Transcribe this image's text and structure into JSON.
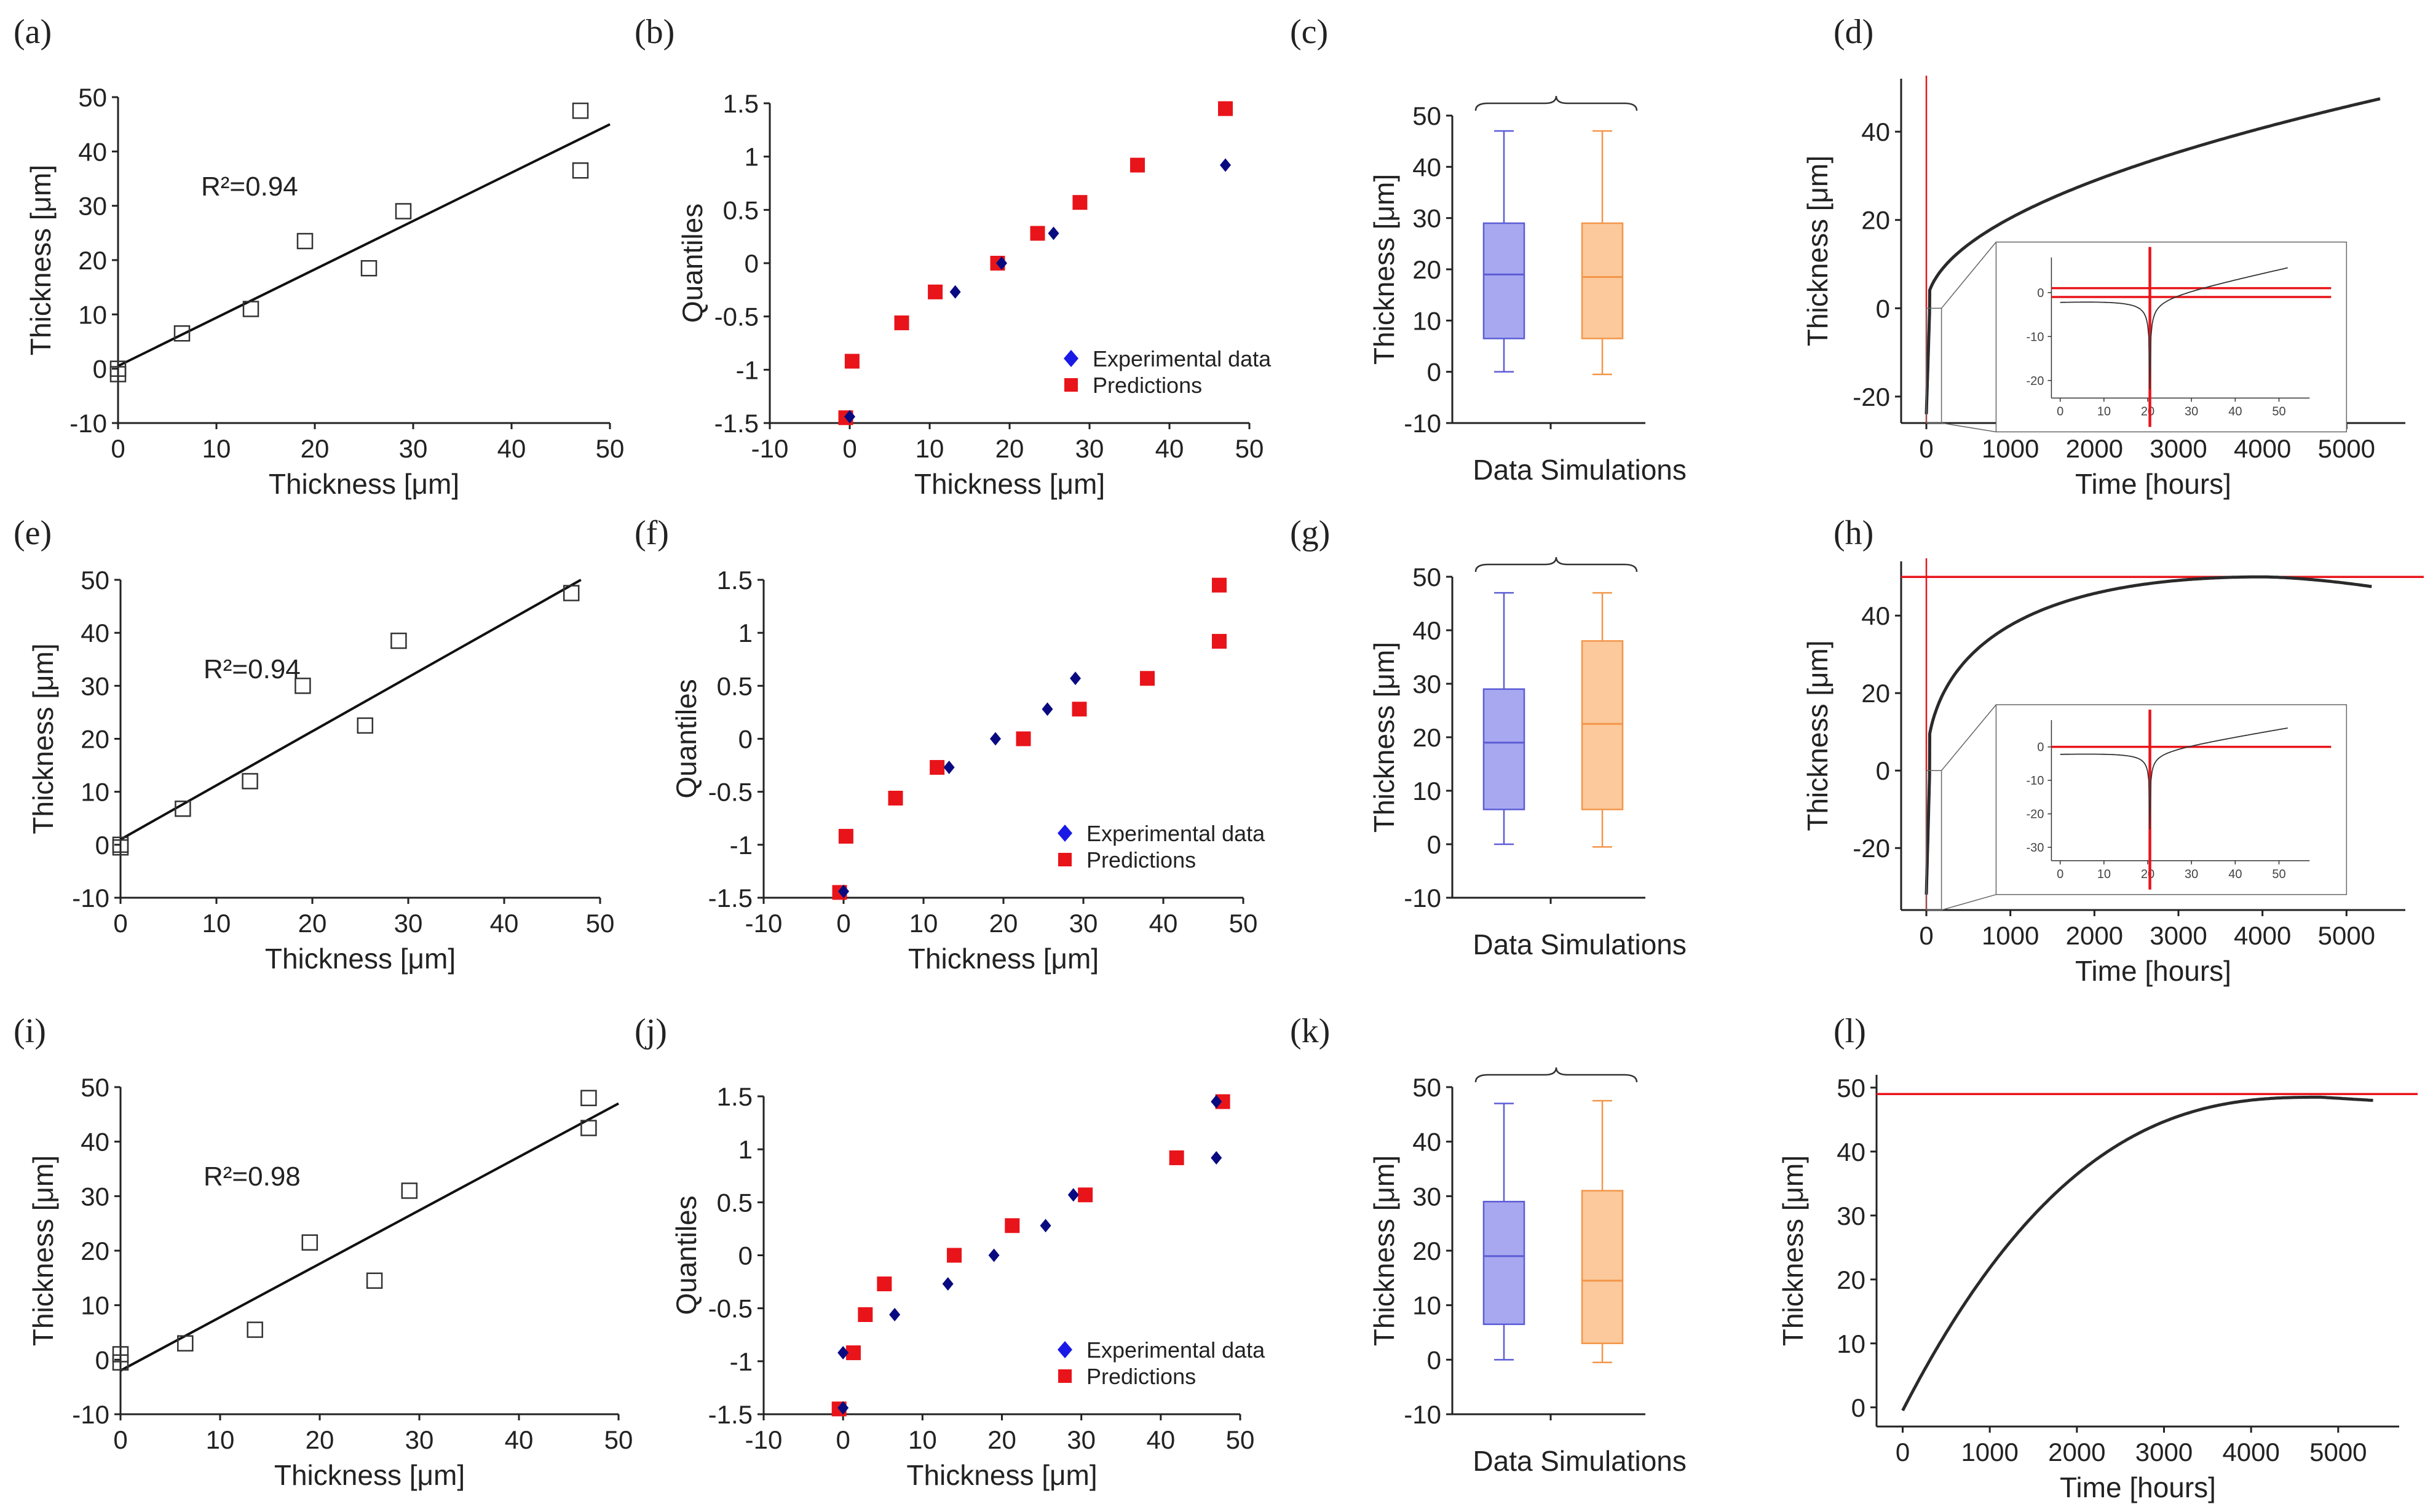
{
  "figure": {
    "description_rows": 3
  },
  "chart_data": [
    {
      "id": "a",
      "panel_label": "(a)",
      "type": "scatter",
      "xlabel": "Thickness [μm]",
      "ylabel": "Thickness [μm]",
      "xlim": [
        0,
        50
      ],
      "ylim": [
        -10,
        50
      ],
      "xticks": [
        0,
        10,
        20,
        30,
        40,
        50
      ],
      "yticks": [
        -10,
        0,
        10,
        20,
        30,
        40,
        50
      ],
      "annotation": "R²=0.94",
      "points": [
        [
          0,
          0
        ],
        [
          0,
          -1
        ],
        [
          6.5,
          6.5
        ],
        [
          13.5,
          11
        ],
        [
          19,
          23.5
        ],
        [
          25.5,
          18.5
        ],
        [
          29,
          29
        ],
        [
          47,
          47.5
        ],
        [
          47,
          36.5
        ]
      ],
      "fit_line": [
        [
          0,
          0.5
        ],
        [
          50,
          45
        ]
      ]
    },
    {
      "id": "b",
      "panel_label": "(b)",
      "type": "scatter",
      "xlabel": "Thickness [μm]",
      "ylabel": "Quantiles",
      "xlim": [
        -10,
        50
      ],
      "ylim": [
        -1.5,
        1.5
      ],
      "xticks": [
        -10,
        0,
        10,
        20,
        30,
        40,
        50
      ],
      "yticks": [
        -1.5,
        -1,
        -0.5,
        0,
        0.5,
        1,
        1.5
      ],
      "legend": [
        "Experimental data",
        "Predictions"
      ],
      "series": [
        {
          "name": "Experimental data",
          "points": [
            [
              0,
              -1.44
            ],
            [
              13.2,
              -0.27
            ],
            [
              19,
              0
            ],
            [
              25.5,
              0.28
            ],
            [
              47,
              0.92
            ]
          ]
        },
        {
          "name": "Predictions",
          "points": [
            [
              -0.5,
              -1.45
            ],
            [
              0.3,
              -0.92
            ],
            [
              6.5,
              -0.56
            ],
            [
              10.7,
              -0.27
            ],
            [
              18.5,
              0
            ],
            [
              23.5,
              0.28
            ],
            [
              28.8,
              0.57
            ],
            [
              36,
              0.92
            ],
            [
              47,
              1.45
            ]
          ]
        }
      ]
    },
    {
      "id": "c",
      "panel_label": "(c)",
      "type": "box",
      "ylabel": "Thickness [μm]",
      "ylim": [
        -10,
        50
      ],
      "yticks": [
        -10,
        0,
        10,
        20,
        30,
        40,
        50
      ],
      "categories": [
        "Data",
        "Simulations"
      ],
      "boxes": [
        {
          "name": "Data",
          "min": 0,
          "q1": 6.5,
          "median": 19,
          "q3": 29,
          "max": 47
        },
        {
          "name": "Simulations",
          "min": -0.5,
          "q1": 6.5,
          "median": 18.5,
          "q3": 29,
          "max": 47
        }
      ]
    },
    {
      "id": "d",
      "panel_label": "(d)",
      "type": "line",
      "xlabel": "Time [hours]",
      "ylabel": "Thickness [μm]",
      "xlim": [
        -300,
        5700
      ],
      "ylim": [
        -26,
        52
      ],
      "xticks": [
        0,
        1000,
        2000,
        3000,
        4000,
        5000
      ],
      "yticks": [
        -20,
        0,
        20,
        40
      ],
      "curve": {
        "t0": 0,
        "t1": 5400,
        "a": 0,
        "b": 0,
        "k": 0,
        "sqrt_coeff": 0.6458,
        "dip": -24
      },
      "horizontal_lines": [],
      "vertical_lines": [
        0
      ],
      "inset": {
        "xticks": [
          0,
          10,
          20,
          30,
          40,
          50
        ],
        "yticks": [
          0,
          -10,
          -20
        ],
        "xlim": [
          -2,
          57
        ],
        "ylim": [
          -24,
          8
        ],
        "horizontal_lines": [
          -1,
          1
        ],
        "vertical_line": 20.5
      }
    },
    {
      "id": "e",
      "panel_label": "(e)",
      "type": "scatter",
      "xlabel": "Thickness [μm]",
      "ylabel": "Thickness [μm]",
      "xlim": [
        0,
        50
      ],
      "ylim": [
        -10,
        50
      ],
      "xticks": [
        0,
        10,
        20,
        30,
        40,
        50
      ],
      "yticks": [
        -10,
        0,
        10,
        20,
        30,
        40,
        50
      ],
      "annotation": "R²=0.94",
      "points": [
        [
          0,
          0
        ],
        [
          0,
          -0.5
        ],
        [
          6.5,
          6.8
        ],
        [
          13.5,
          12
        ],
        [
          19,
          30
        ],
        [
          25.5,
          22.5
        ],
        [
          29,
          38.5
        ],
        [
          47,
          47.5
        ]
      ],
      "fit_line": [
        [
          0,
          1
        ],
        [
          48,
          50
        ]
      ]
    },
    {
      "id": "f",
      "panel_label": "(f)",
      "type": "scatter",
      "xlabel": "Thickness [μm]",
      "ylabel": "Quantiles",
      "xlim": [
        -10,
        50
      ],
      "ylim": [
        -1.5,
        1.5
      ],
      "xticks": [
        -10,
        0,
        10,
        20,
        30,
        40,
        50
      ],
      "yticks": [
        -1.5,
        -1,
        -0.5,
        0,
        0.5,
        1,
        1.5
      ],
      "legend": [
        "Experimental data",
        "Predictions"
      ],
      "series": [
        {
          "name": "Experimental data",
          "points": [
            [
              0,
              -1.44
            ],
            [
              13.2,
              -0.27
            ],
            [
              19,
              0
            ],
            [
              25.5,
              0.28
            ],
            [
              29,
              0.57
            ]
          ]
        },
        {
          "name": "Predictions",
          "points": [
            [
              -0.5,
              -1.45
            ],
            [
              0.3,
              -0.92
            ],
            [
              6.5,
              -0.56
            ],
            [
              11.7,
              -0.27
            ],
            [
              22.5,
              0
            ],
            [
              29.5,
              0.28
            ],
            [
              38,
              0.57
            ],
            [
              47,
              0.92
            ],
            [
              47,
              1.45
            ]
          ]
        }
      ]
    },
    {
      "id": "g",
      "panel_label": "(g)",
      "type": "box",
      "ylabel": "Thickness [μm]",
      "ylim": [
        -10,
        50
      ],
      "yticks": [
        -10,
        0,
        10,
        20,
        30,
        40,
        50
      ],
      "categories": [
        "Data",
        "Simulations"
      ],
      "boxes": [
        {
          "name": "Data",
          "min": 0,
          "q1": 6.5,
          "median": 19,
          "q3": 29,
          "max": 47
        },
        {
          "name": "Simulations",
          "min": -0.5,
          "q1": 6.5,
          "median": 22.5,
          "q3": 38,
          "max": 47
        }
      ]
    },
    {
      "id": "h",
      "panel_label": "(h)",
      "type": "line",
      "xlabel": "Time [hours]",
      "ylabel": "Thickness [μm]",
      "xlim": [
        -300,
        5700
      ],
      "ylim": [
        -36,
        54
      ],
      "xticks": [
        0,
        1000,
        2000,
        3000,
        4000,
        5000
      ],
      "yticks": [
        -20,
        0,
        20,
        40
      ],
      "curve": {
        "t0": 0,
        "t1": 5300,
        "a": 0,
        "b": 0,
        "k": 0,
        "peak_t": 4000,
        "peak_y": 50,
        "end_y": 47.5,
        "dip": -32
      },
      "horizontal_lines": [
        50
      ],
      "vertical_lines": [
        0
      ],
      "inset": {
        "xticks": [
          0,
          10,
          20,
          30,
          40,
          50
        ],
        "yticks": [
          0,
          -10,
          -20,
          -30
        ],
        "xlim": [
          -2,
          57
        ],
        "ylim": [
          -34,
          8
        ],
        "horizontal_lines": [
          0
        ],
        "vertical_line": 20.5
      }
    },
    {
      "id": "i",
      "panel_label": "(i)",
      "type": "scatter",
      "xlabel": "Thickness [μm]",
      "ylabel": "Thickness [μm]",
      "xlim": [
        0,
        50
      ],
      "ylim": [
        -10,
        50
      ],
      "xticks": [
        0,
        10,
        20,
        30,
        40,
        50
      ],
      "yticks": [
        -10,
        0,
        10,
        20,
        30,
        40,
        50
      ],
      "annotation": "R²=0.98",
      "points": [
        [
          0,
          1
        ],
        [
          0,
          -0.5
        ],
        [
          6.5,
          3
        ],
        [
          13.5,
          5.5
        ],
        [
          19,
          21.5
        ],
        [
          25.5,
          14.5
        ],
        [
          29,
          31
        ],
        [
          47,
          48
        ],
        [
          47,
          42.5
        ]
      ],
      "fit_line": [
        [
          0,
          -2
        ],
        [
          50,
          47
        ]
      ]
    },
    {
      "id": "j",
      "panel_label": "(j)",
      "type": "scatter",
      "xlabel": "Thickness [μm]",
      "ylabel": "Quantiles",
      "xlim": [
        -10,
        50
      ],
      "ylim": [
        -1.5,
        1.5
      ],
      "xticks": [
        -10,
        0,
        10,
        20,
        30,
        40,
        50
      ],
      "yticks": [
        -1.5,
        -1,
        -0.5,
        0,
        0.5,
        1,
        1.5
      ],
      "legend": [
        "Experimental data",
        "Predictions"
      ],
      "series": [
        {
          "name": "Experimental data",
          "points": [
            [
              0,
              -1.44
            ],
            [
              0,
              -0.92
            ],
            [
              6.5,
              -0.56
            ],
            [
              13.2,
              -0.27
            ],
            [
              19,
              0
            ],
            [
              25.5,
              0.28
            ],
            [
              29,
              0.57
            ],
            [
              47,
              0.92
            ],
            [
              47,
              1.45
            ]
          ]
        },
        {
          "name": "Predictions",
          "points": [
            [
              -0.5,
              -1.45
            ],
            [
              1.3,
              -0.92
            ],
            [
              2.8,
              -0.56
            ],
            [
              5.2,
              -0.27
            ],
            [
              14,
              0
            ],
            [
              21.3,
              0.28
            ],
            [
              30.5,
              0.57
            ],
            [
              42,
              0.92
            ],
            [
              47.8,
              1.45
            ]
          ]
        }
      ]
    },
    {
      "id": "k",
      "panel_label": "(k)",
      "type": "box",
      "ylabel": "Thickness [μm]",
      "ylim": [
        -10,
        50
      ],
      "yticks": [
        -10,
        0,
        10,
        20,
        30,
        40,
        50
      ],
      "categories": [
        "Data",
        "Simulations"
      ],
      "boxes": [
        {
          "name": "Data",
          "min": 0,
          "q1": 6.5,
          "median": 19,
          "q3": 29,
          "max": 47
        },
        {
          "name": "Simulations",
          "min": -0.5,
          "q1": 3,
          "median": 14.5,
          "q3": 31,
          "max": 47.5
        }
      ]
    },
    {
      "id": "l",
      "panel_label": "(l)",
      "type": "line",
      "xlabel": "Time [hours]",
      "ylabel": "Thickness [μm]",
      "xlim": [
        -300,
        5700
      ],
      "ylim": [
        -3,
        52
      ],
      "xticks": [
        0,
        1000,
        2000,
        3000,
        4000,
        5000
      ],
      "yticks": [
        0,
        10,
        20,
        30,
        40,
        50
      ],
      "curve": {
        "t0": 0,
        "t1": 5400,
        "peak_t": 4800,
        "peak_y": 48.5,
        "end_y": 48,
        "start_y": -0.5,
        "dip": null
      },
      "horizontal_lines": [
        49
      ],
      "vertical_lines": []
    }
  ]
}
